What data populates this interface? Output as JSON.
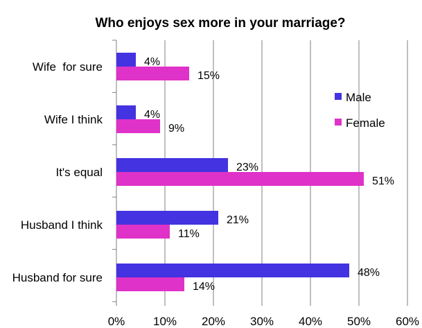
{
  "chart_data": {
    "type": "bar",
    "orientation": "horizontal",
    "title": "Who enjoys sex more in your marriage?",
    "categories": [
      "Wife  for sure",
      "Wife I think",
      "It's equal",
      "Husband I think",
      "Husband for sure"
    ],
    "series": [
      {
        "name": "Male",
        "values": [
          4,
          4,
          23,
          21,
          48
        ],
        "labels": [
          "4%",
          "4%",
          "23%",
          "21%",
          "48%"
        ],
        "color": "#4333e0"
      },
      {
        "name": "Female",
        "values": [
          15,
          9,
          51,
          11,
          14
        ],
        "labels": [
          "15%",
          "9%",
          "51%",
          "11%",
          "14%"
        ],
        "color": "#df32c8"
      }
    ],
    "xlim": [
      0,
      60
    ],
    "xticks": [
      0,
      10,
      20,
      30,
      40,
      50,
      60
    ],
    "xtick_labels": [
      "0%",
      "10%",
      "20%",
      "30%",
      "40%",
      "50%",
      "60%"
    ],
    "xlabel": "",
    "ylabel": "",
    "grid": true,
    "legend_position": "right"
  }
}
